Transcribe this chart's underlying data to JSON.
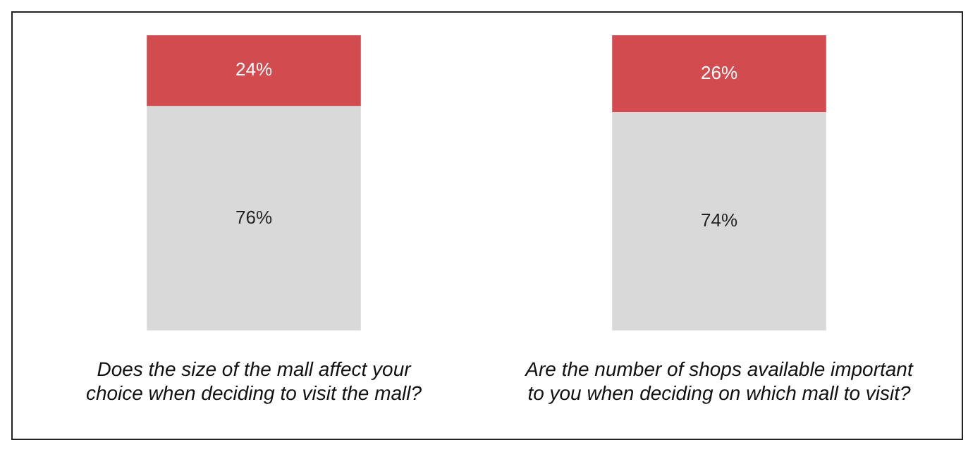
{
  "chart_data": {
    "type": "bar",
    "stacked": true,
    "categories": [
      "Does the size of the mall affect your choice when deciding to visit the mall?",
      "Are the number of shops available important to you when deciding on which mall to visit?"
    ],
    "series": [
      {
        "color": "#d9d9d9",
        "values": [
          76,
          74
        ],
        "value_labels": [
          "76%",
          "74%"
        ]
      },
      {
        "color": "#d24b4e",
        "values": [
          24,
          26
        ],
        "value_labels": [
          "24%",
          "26%"
        ]
      }
    ]
  }
}
